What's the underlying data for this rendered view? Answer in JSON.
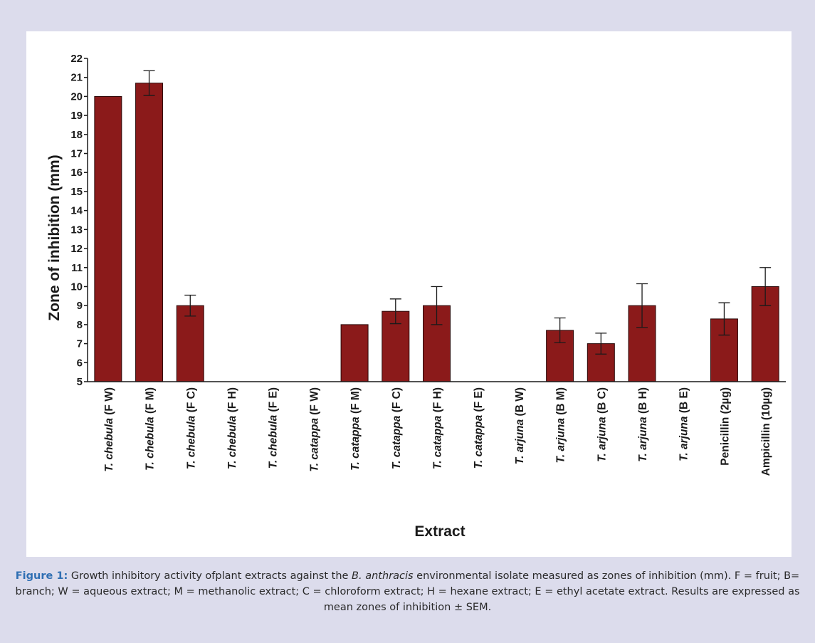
{
  "chart_data": {
    "type": "bar",
    "categories": [
      {
        "species": "T. chebula",
        "suffix": " (F W)"
      },
      {
        "species": "T. chebula",
        "suffix": " (F M)"
      },
      {
        "species": "T. chebula",
        "suffix": " (F C)"
      },
      {
        "species": "T. chebula",
        "suffix": " (F H)"
      },
      {
        "species": "T. chebula",
        "suffix": " (F E)"
      },
      {
        "species": "T. catappa",
        "suffix": " (F W)"
      },
      {
        "species": "T. catappa",
        "suffix": " (F M)"
      },
      {
        "species": "T. catappa",
        "suffix": " (F C)"
      },
      {
        "species": "T. catappa",
        "suffix": " (F H)"
      },
      {
        "species": "T. catappa",
        "suffix": " (F E)"
      },
      {
        "species": "T. arjuna",
        "suffix": " (B W)"
      },
      {
        "species": "T. arjuna",
        "suffix": " (B M)"
      },
      {
        "species": "T. arjuna",
        "suffix": " (B C)"
      },
      {
        "species": "T. arjuna",
        "suffix": " (B H)"
      },
      {
        "species": "T. arjuna",
        "suffix": " (B E)"
      },
      {
        "species": "",
        "suffix": "Penicillin (2µg)"
      },
      {
        "species": "",
        "suffix": "Ampicillin (10µg)"
      }
    ],
    "values": [
      20,
      20.7,
      9,
      null,
      null,
      null,
      8,
      8.7,
      9,
      null,
      null,
      7.7,
      7,
      9,
      null,
      8.3,
      10
    ],
    "errors": [
      0,
      0.65,
      0.55,
      null,
      null,
      null,
      0,
      0.65,
      1.0,
      null,
      null,
      0.65,
      0.55,
      1.15,
      null,
      0.85,
      1.0
    ],
    "xlabel": "Extract",
    "ylabel": "Zone of inhibition  (mm)",
    "ylim": [
      5,
      22
    ],
    "yticks": [
      5,
      6,
      7,
      8,
      9,
      10,
      11,
      12,
      13,
      14,
      15,
      16,
      17,
      18,
      19,
      20,
      21,
      22
    ],
    "grid": false,
    "bar_color": "#8b1a1a"
  },
  "caption": {
    "label": "Figure 1:",
    "segments": [
      {
        "text": " Growth inhibitory activity ofplant extracts against the ",
        "italic": false
      },
      {
        "text": "B. anthracis",
        "italic": true
      },
      {
        "text": " environmental isolate measured as zones of inhibition (mm). F = fruit; B= branch; W = aqueous extract; M = methanolic extract; C = chloroform extract; H = hexane extract; E = ethyl acetate extract. Results are expressed as mean zones of inhibition ± SEM.",
        "italic": false
      }
    ]
  }
}
